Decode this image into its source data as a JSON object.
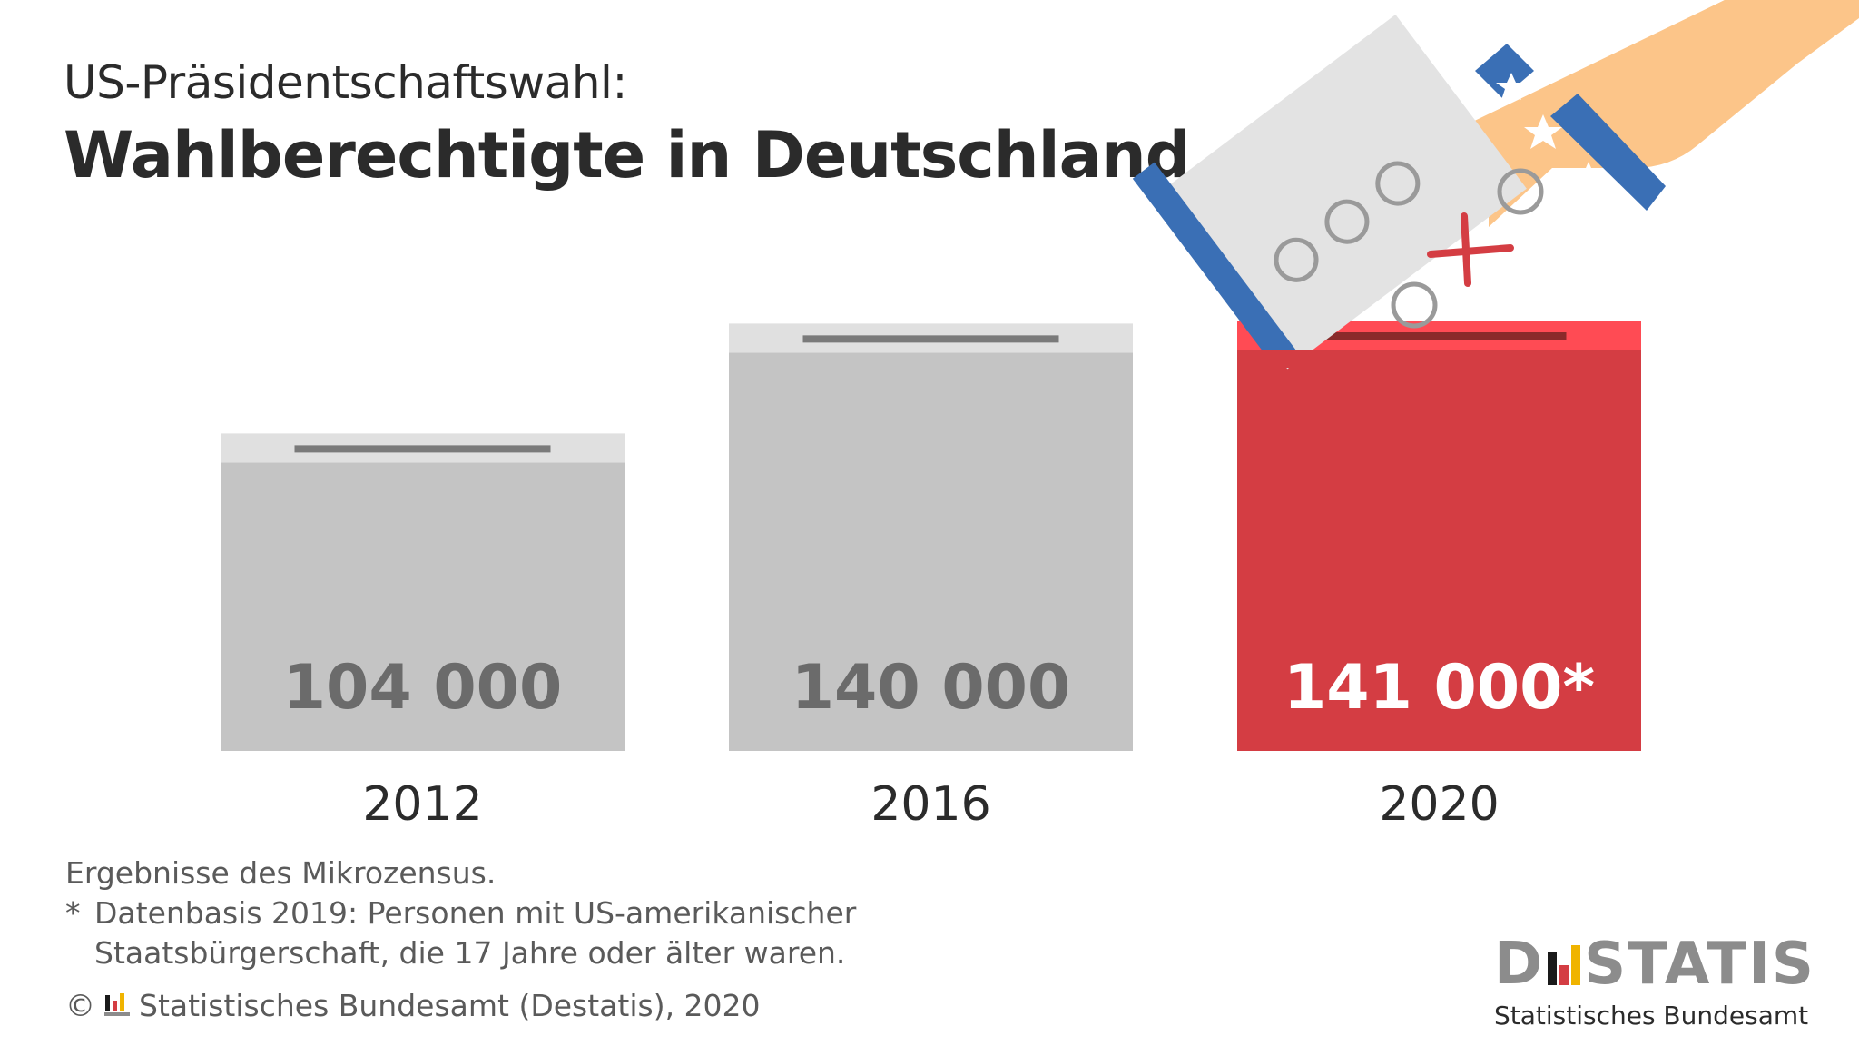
{
  "header": {
    "subtitle": "US-Präsidentschaftswahl:",
    "title": "Wahlberechtigte in Deutschland"
  },
  "chart_data": {
    "type": "bar",
    "categories": [
      "2012",
      "2016",
      "2020"
    ],
    "values": [
      104000,
      140000,
      141000
    ],
    "value_labels": [
      "104 000",
      "140 000",
      "141 000*"
    ],
    "title": "Wahlberechtigte in Deutschland",
    "xlabel": "",
    "ylabel": "",
    "ylim": [
      0,
      141000
    ],
    "grid": false,
    "legend": "none",
    "colors": {
      "default_bar": "#c4c4c4",
      "default_lid": "#e0e0e0",
      "highlight_bar": "#d43d43",
      "highlight_lid": "#ff4b54",
      "slot": "#7a7a7a",
      "default_label": "#6b6b6b",
      "highlight_label": "#ffffff"
    },
    "highlight_index": 2
  },
  "footer": {
    "note": "Ergebnisse des Mikrozensus.",
    "star": "*",
    "footnote_line1": "Datenbasis 2019: Personen mit US-amerikanischer",
    "footnote_line2": "Staatsbürgerschaft, die 17 Jahre oder älter waren.",
    "copyright_symbol": "©",
    "copyright_text": "Statistisches Bundesamt (Destatis), 2020"
  },
  "logo": {
    "letter_d": "D",
    "word_rest": "STATIS",
    "subtitle": "Statistisches Bundesamt",
    "colors": {
      "black": "#1a1a1a",
      "red": "#d43d43",
      "gold": "#f0b400",
      "gray": "#8c8c8c"
    }
  },
  "illustration": {
    "icons": [
      "hand-icon",
      "ballot-paper-icon",
      "star-icon",
      "cross-mark-icon"
    ],
    "colors": {
      "skin": "#fcc589",
      "blue": "#3a6fb5",
      "paper": "#e3e3e3",
      "cross": "#d43d43",
      "circle": "#9a9a9a"
    }
  }
}
